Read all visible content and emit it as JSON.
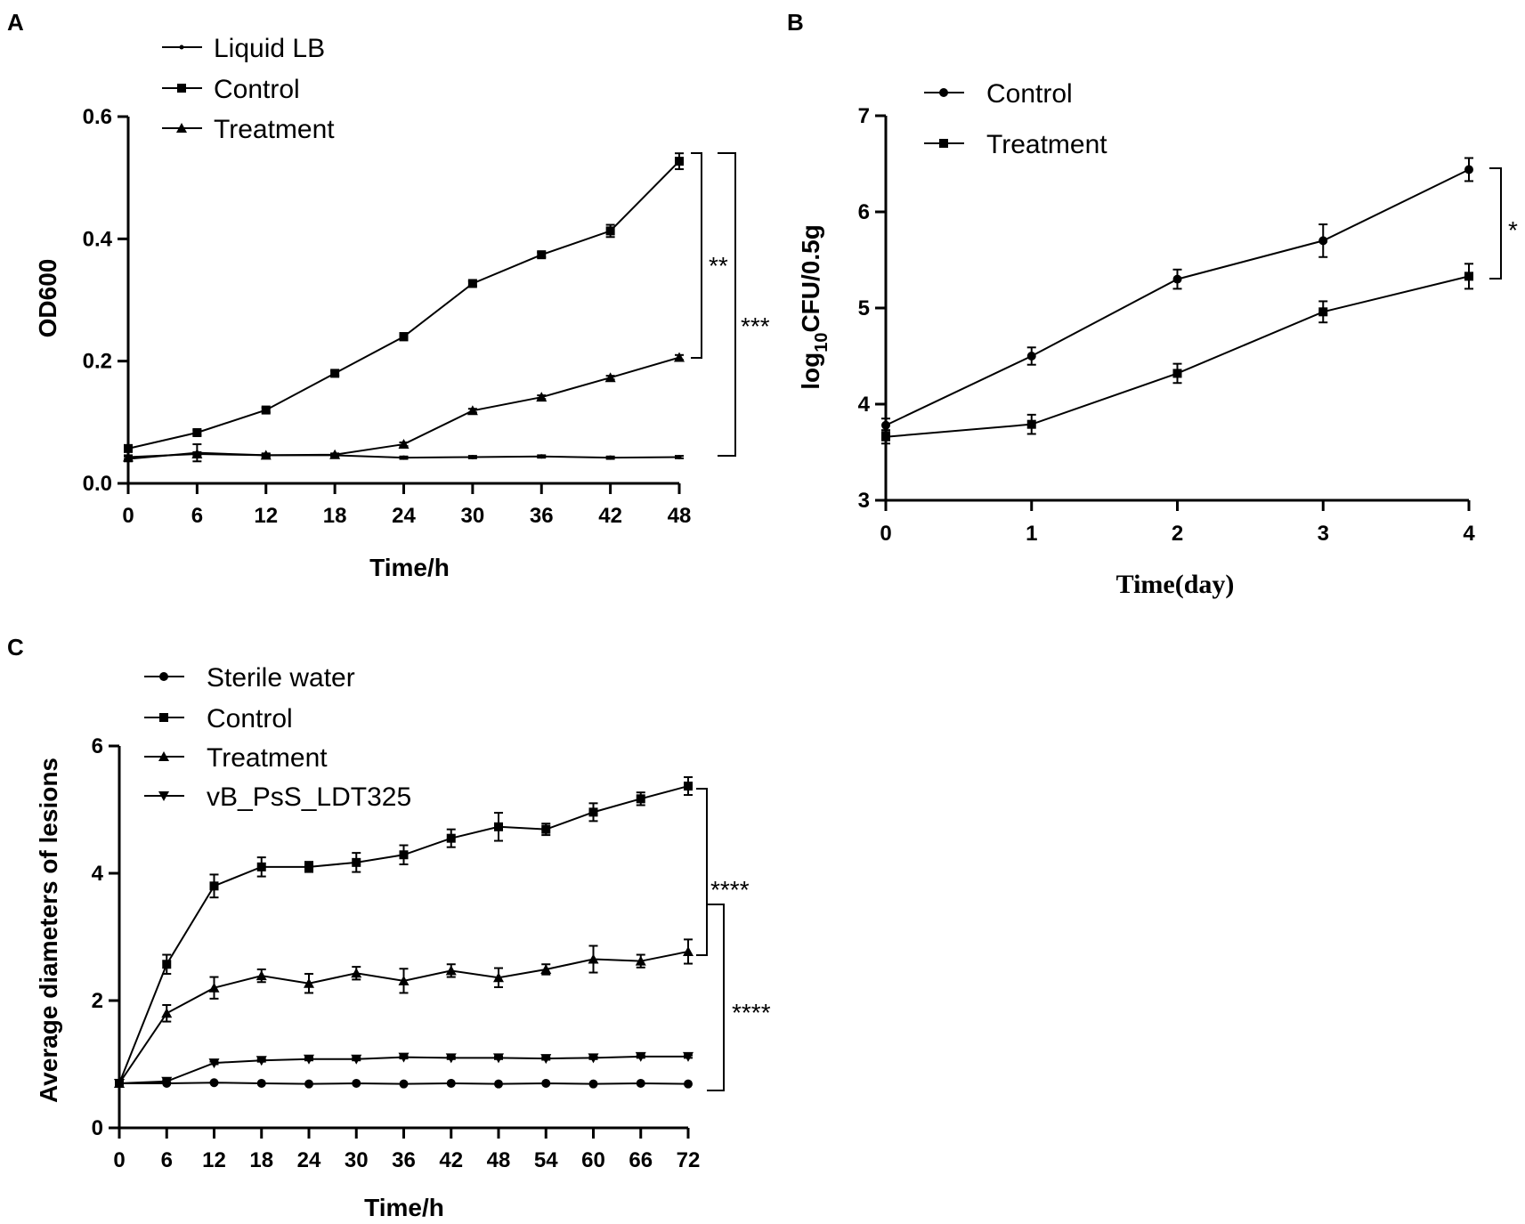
{
  "chart_data": [
    {
      "id": "A",
      "type": "line",
      "panel_label": "A",
      "title": "",
      "xlabel": "Time/h",
      "ylabel": "OD600",
      "x": [
        0,
        6,
        12,
        18,
        24,
        30,
        36,
        42,
        48
      ],
      "x_ticks": [
        "0",
        "6",
        "12",
        "18",
        "24",
        "30",
        "36",
        "42",
        "48"
      ],
      "y_ticks": [
        "0.0",
        "0.2",
        "0.4",
        "0.6"
      ],
      "xlim": [
        0,
        48
      ],
      "ylim": [
        0,
        0.6
      ],
      "series": [
        {
          "name": "Liquid LB",
          "marker": "dot",
          "values": [
            0.04,
            0.05,
            0.046,
            0.046,
            0.042,
            0.043,
            0.044,
            0.042,
            0.043
          ],
          "errors": [
            0.004,
            0.014,
            0.003,
            0.002,
            0.002,
            0.002,
            0.002,
            0.002,
            0.002
          ]
        },
        {
          "name": "Control",
          "marker": "square",
          "values": [
            0.057,
            0.083,
            0.12,
            0.18,
            0.24,
            0.327,
            0.374,
            0.413,
            0.527
          ],
          "errors": [
            0.004,
            0.004,
            0.004,
            0.004,
            0.006,
            0.004,
            0.004,
            0.01,
            0.013
          ]
        },
        {
          "name": "Treatment",
          "marker": "triangle",
          "values": [
            0.043,
            0.048,
            0.046,
            0.047,
            0.064,
            0.119,
            0.141,
            0.173,
            0.206
          ],
          "errors": [
            0.003,
            0.003,
            0.002,
            0.002,
            0.003,
            0.003,
            0.003,
            0.003,
            0.004
          ]
        }
      ],
      "significance": [
        {
          "label": "**",
          "between": [
            "Control",
            "Treatment"
          ]
        },
        {
          "label": "***",
          "between": [
            "Control",
            "Liquid LB"
          ]
        }
      ]
    },
    {
      "id": "B",
      "type": "line",
      "panel_label": "B",
      "title": "",
      "xlabel": "Time(day)",
      "ylabel": "log10CFU/0.5g",
      "ylabel_parts": {
        "pre": "log",
        "sub": "10",
        "post": "CFU/0.5g"
      },
      "x": [
        0,
        1,
        2,
        3,
        4
      ],
      "x_ticks": [
        "0",
        "1",
        "2",
        "3",
        "4"
      ],
      "y_ticks": [
        "3",
        "4",
        "5",
        "6",
        "7"
      ],
      "xlim": [
        0,
        4
      ],
      "ylim": [
        3,
        7
      ],
      "series": [
        {
          "name": "Control",
          "marker": "circle",
          "values": [
            3.78,
            4.5,
            5.3,
            5.7,
            6.44
          ],
          "errors": [
            0.07,
            0.09,
            0.1,
            0.17,
            0.12
          ]
        },
        {
          "name": "Treatment",
          "marker": "square",
          "values": [
            3.66,
            3.79,
            4.32,
            4.96,
            5.33
          ],
          "errors": [
            0.07,
            0.1,
            0.1,
            0.11,
            0.13
          ]
        }
      ],
      "significance": [
        {
          "label": "*",
          "between": [
            "Control",
            "Treatment"
          ]
        }
      ]
    },
    {
      "id": "C",
      "type": "line",
      "panel_label": "C",
      "title": "",
      "xlabel": "Time/h",
      "ylabel": "Average diameters of lesions",
      "x": [
        0,
        6,
        12,
        18,
        24,
        30,
        36,
        42,
        48,
        54,
        60,
        66,
        72
      ],
      "x_ticks": [
        "0",
        "6",
        "12",
        "18",
        "24",
        "30",
        "36",
        "42",
        "48",
        "54",
        "60",
        "66",
        "72"
      ],
      "y_ticks": [
        "0",
        "2",
        "4",
        "6"
      ],
      "xlim": [
        0,
        72
      ],
      "ylim": [
        0,
        6
      ],
      "series": [
        {
          "name": "Sterile water",
          "marker": "circle",
          "values": [
            0.7,
            0.7,
            0.71,
            0.7,
            0.69,
            0.7,
            0.69,
            0.7,
            0.69,
            0.7,
            0.69,
            0.7,
            0.69
          ],
          "errors": [
            0,
            0,
            0,
            0,
            0,
            0,
            0,
            0,
            0,
            0,
            0,
            0,
            0
          ]
        },
        {
          "name": "Control",
          "marker": "square",
          "values": [
            0.7,
            2.57,
            3.8,
            4.1,
            4.1,
            4.17,
            4.29,
            4.55,
            4.73,
            4.69,
            4.96,
            5.17,
            5.37
          ],
          "errors": [
            0,
            0.15,
            0.18,
            0.15,
            0.08,
            0.15,
            0.15,
            0.14,
            0.22,
            0.09,
            0.14,
            0.1,
            0.14
          ]
        },
        {
          "name": "Treatment",
          "marker": "triangle",
          "values": [
            0.7,
            1.8,
            2.2,
            2.39,
            2.27,
            2.43,
            2.31,
            2.47,
            2.36,
            2.49,
            2.65,
            2.62,
            2.77
          ],
          "errors": [
            0,
            0.13,
            0.17,
            0.1,
            0.15,
            0.1,
            0.19,
            0.1,
            0.15,
            0.08,
            0.21,
            0.1,
            0.19
          ]
        },
        {
          "name": "vB_PsS_LDT325",
          "marker": "triangle-down",
          "values": [
            0.7,
            0.73,
            1.02,
            1.06,
            1.08,
            1.08,
            1.11,
            1.1,
            1.1,
            1.09,
            1.1,
            1.12,
            1.12
          ],
          "errors": [
            0,
            0.02,
            0.02,
            0.02,
            0.02,
            0.02,
            0.02,
            0.02,
            0.02,
            0.02,
            0.02,
            0.02,
            0.02
          ]
        }
      ],
      "significance": [
        {
          "label": "****",
          "between": [
            "Control",
            "Treatment"
          ]
        },
        {
          "label": "****",
          "between": [
            "Treatment",
            "Sterile water"
          ]
        }
      ]
    }
  ]
}
